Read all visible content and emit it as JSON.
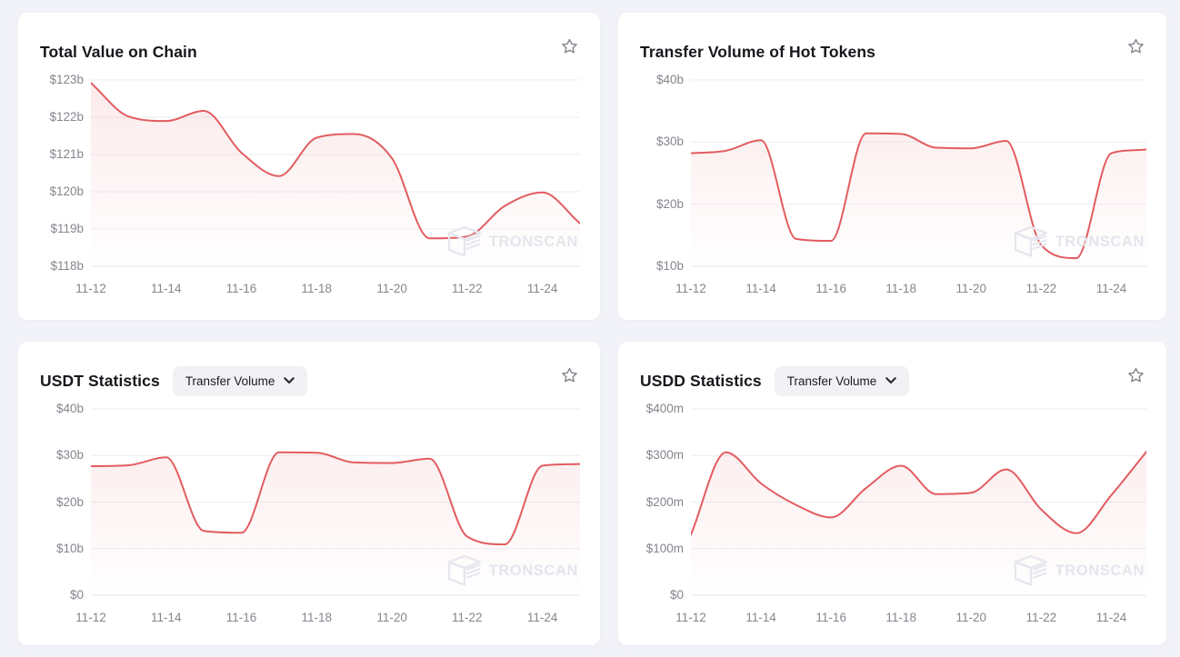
{
  "page": {
    "background": "#f2f3f8",
    "card_background": "#ffffff"
  },
  "watermark": {
    "text": "TRONSCAN"
  },
  "cards": [
    {
      "title": "Total Value on Chain",
      "favorited": false
    },
    {
      "title": "Transfer Volume of Hot Tokens",
      "favorited": false
    },
    {
      "title": "USDT Statistics",
      "favorited": false,
      "dropdown": {
        "label": "Transfer Volume"
      }
    },
    {
      "title": "USDD Statistics",
      "favorited": false,
      "dropdown": {
        "label": "Transfer Volume"
      }
    }
  ],
  "chart_data": [
    {
      "type": "area",
      "title": "Total Value on Chain",
      "x": [
        "11-12",
        "11-13",
        "11-14",
        "11-15",
        "11-16",
        "11-17",
        "11-18",
        "11-19",
        "11-20",
        "11-21",
        "11-22",
        "11-23",
        "11-24",
        "11-25"
      ],
      "values": [
        122.92,
        122.02,
        121.9,
        122.17,
        121.05,
        120.42,
        121.45,
        121.55,
        120.9,
        118.75,
        118.8,
        119.62,
        119.98,
        119.15
      ],
      "unit": "USD billions",
      "ylim": [
        118,
        123
      ],
      "y_ticks": [
        {
          "value": 123,
          "label": "$123b"
        },
        {
          "value": 122,
          "label": "$122b"
        },
        {
          "value": 121,
          "label": "$121b"
        },
        {
          "value": 120,
          "label": "$120b"
        },
        {
          "value": 119,
          "label": "$119b"
        },
        {
          "value": 118,
          "label": "$118b"
        }
      ],
      "x_ticks": [
        {
          "index": 0,
          "label": "11-12"
        },
        {
          "index": 2,
          "label": "11-14"
        },
        {
          "index": 4,
          "label": "11-16"
        },
        {
          "index": 6,
          "label": "11-18"
        },
        {
          "index": 8,
          "label": "11-20"
        },
        {
          "index": 10,
          "label": "11-22"
        },
        {
          "index": 12,
          "label": "11-24"
        }
      ],
      "grid": true,
      "legend": "none",
      "line_color": "#e25c60",
      "fill_from": "rgba(226,92,96,0.13)",
      "fill_to": "rgba(226,92,96,0)"
    },
    {
      "type": "area",
      "title": "Transfer Volume of Hot Tokens",
      "x": [
        "11-12",
        "11-13",
        "11-14",
        "11-15",
        "11-16",
        "11-17",
        "11-18",
        "11-19",
        "11-20",
        "11-21",
        "11-22",
        "11-23",
        "11-24",
        "11-25"
      ],
      "values": [
        28.2,
        28.6,
        30.3,
        14.4,
        14.1,
        31.4,
        31.3,
        29.1,
        29.0,
        30.2,
        13.4,
        11.3,
        28.2,
        28.8
      ],
      "unit": "USD billions",
      "ylim": [
        10,
        40
      ],
      "y_ticks": [
        {
          "value": 40,
          "label": "$40b"
        },
        {
          "value": 30,
          "label": "$30b"
        },
        {
          "value": 20,
          "label": "$20b"
        },
        {
          "value": 10,
          "label": "$10b"
        }
      ],
      "x_ticks": [
        {
          "index": 0,
          "label": "11-12"
        },
        {
          "index": 2,
          "label": "11-14"
        },
        {
          "index": 4,
          "label": "11-16"
        },
        {
          "index": 6,
          "label": "11-18"
        },
        {
          "index": 8,
          "label": "11-20"
        },
        {
          "index": 10,
          "label": "11-22"
        },
        {
          "index": 12,
          "label": "11-24"
        }
      ],
      "grid": true,
      "legend": "none",
      "line_color": "#e25c60",
      "fill_from": "rgba(226,92,96,0.13)",
      "fill_to": "rgba(226,92,96,0)"
    },
    {
      "type": "area",
      "title": "USDT Statistics - Transfer Volume",
      "x": [
        "11-12",
        "11-13",
        "11-14",
        "11-15",
        "11-16",
        "11-17",
        "11-18",
        "11-19",
        "11-20",
        "11-21",
        "11-22",
        "11-23",
        "11-24",
        "11-25"
      ],
      "values": [
        27.7,
        27.9,
        29.6,
        13.8,
        13.4,
        30.7,
        30.6,
        28.5,
        28.4,
        29.3,
        12.6,
        10.9,
        27.8,
        28.2
      ],
      "unit": "USD billions",
      "ylim": [
        0,
        40
      ],
      "y_ticks": [
        {
          "value": 40,
          "label": "$40b"
        },
        {
          "value": 30,
          "label": "$30b"
        },
        {
          "value": 20,
          "label": "$20b"
        },
        {
          "value": 10,
          "label": "$10b"
        },
        {
          "value": 0,
          "label": "$0"
        }
      ],
      "x_ticks": [
        {
          "index": 0,
          "label": "11-12"
        },
        {
          "index": 2,
          "label": "11-14"
        },
        {
          "index": 4,
          "label": "11-16"
        },
        {
          "index": 6,
          "label": "11-18"
        },
        {
          "index": 8,
          "label": "11-20"
        },
        {
          "index": 10,
          "label": "11-22"
        },
        {
          "index": 12,
          "label": "11-24"
        }
      ],
      "grid": true,
      "legend": "none",
      "line_color": "#e25c60",
      "fill_from": "rgba(226,92,96,0.13)",
      "fill_to": "rgba(226,92,96,0)"
    },
    {
      "type": "area",
      "title": "USDD Statistics - Transfer Volume",
      "x": [
        "11-12",
        "11-13",
        "11-14",
        "11-15",
        "11-16",
        "11-17",
        "11-18",
        "11-19",
        "11-20",
        "11-21",
        "11-22",
        "11-23",
        "11-24",
        "11-25"
      ],
      "values": [
        130,
        307,
        240,
        194,
        167,
        230,
        278,
        217,
        220,
        270,
        184,
        133,
        215,
        308
      ],
      "unit": "USD millions",
      "ylim": [
        0,
        400
      ],
      "y_ticks": [
        {
          "value": 400,
          "label": "$400m"
        },
        {
          "value": 300,
          "label": "$300m"
        },
        {
          "value": 200,
          "label": "$200m"
        },
        {
          "value": 100,
          "label": "$100m"
        },
        {
          "value": 0,
          "label": "$0"
        }
      ],
      "x_ticks": [
        {
          "index": 0,
          "label": "11-12"
        },
        {
          "index": 2,
          "label": "11-14"
        },
        {
          "index": 4,
          "label": "11-16"
        },
        {
          "index": 6,
          "label": "11-18"
        },
        {
          "index": 8,
          "label": "11-20"
        },
        {
          "index": 10,
          "label": "11-22"
        },
        {
          "index": 12,
          "label": "11-24"
        }
      ],
      "grid": true,
      "legend": "none",
      "line_color": "#e25c60",
      "fill_from": "rgba(226,92,96,0.13)",
      "fill_to": "rgba(226,92,96,0)"
    }
  ]
}
